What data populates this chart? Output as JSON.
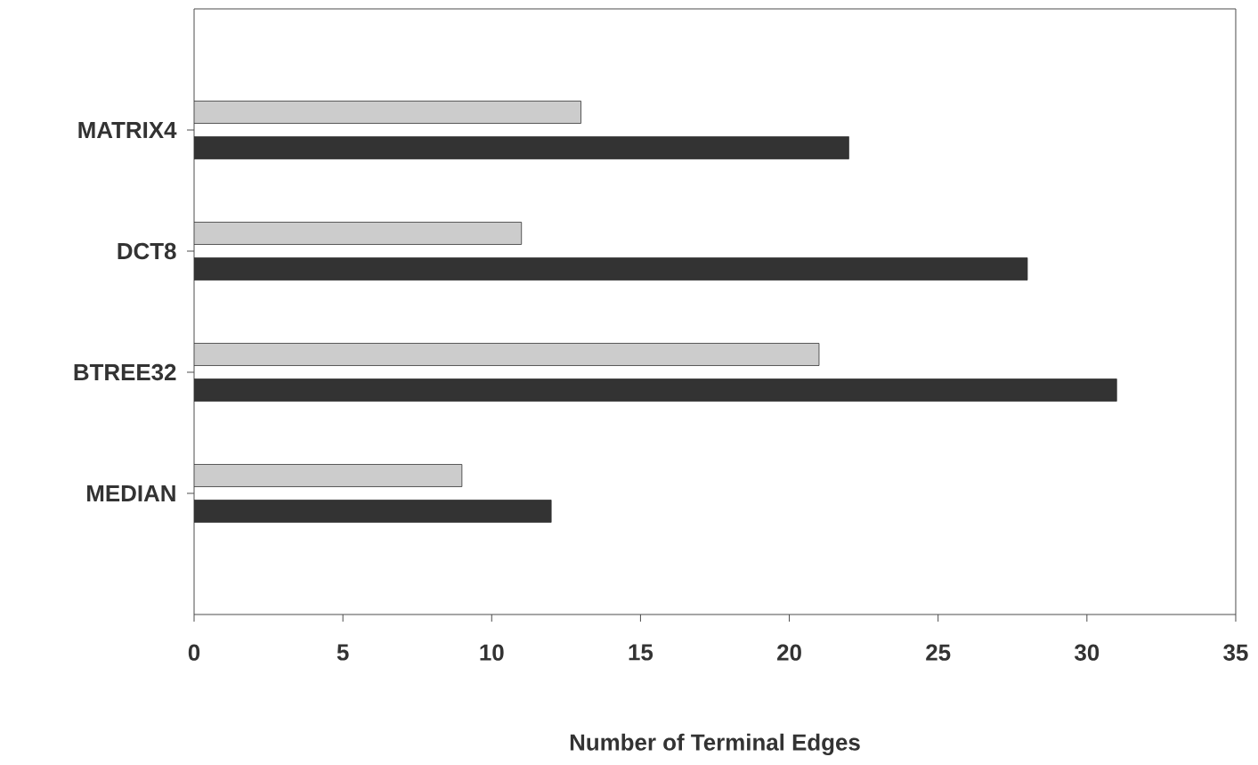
{
  "chart_data": {
    "type": "bar",
    "orientation": "horizontal",
    "categories": [
      "MATRIX4",
      "DCT8",
      "BTREE32",
      "MEDIAN"
    ],
    "series": [
      {
        "color": "#cccccc",
        "values": [
          13,
          11,
          21,
          9
        ]
      },
      {
        "color": "#333333",
        "values": [
          22,
          28,
          31,
          12
        ]
      }
    ],
    "xlim": [
      0,
      35
    ],
    "xticks": [
      0,
      5,
      10,
      15,
      20,
      25,
      30,
      35
    ],
    "xlabel": "Number of Terminal Edges"
  }
}
